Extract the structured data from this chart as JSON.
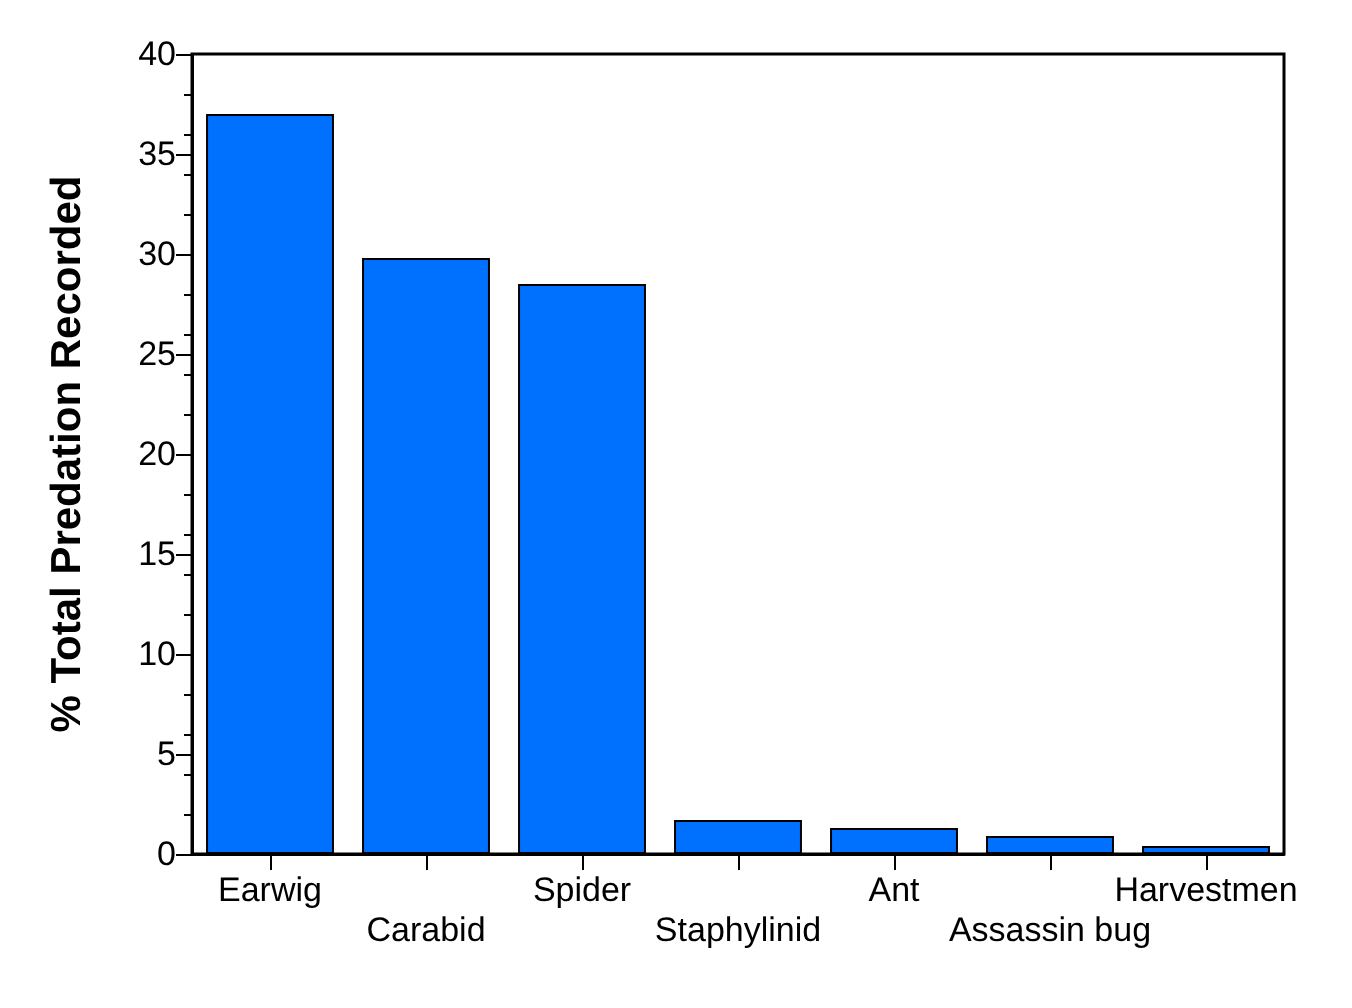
{
  "chart_data": {
    "type": "bar",
    "ylabel": "% Total Predation Recorded",
    "categories": [
      "Earwig",
      "Carabid",
      "Spider",
      "Staphylinid",
      "Ant",
      "Assassin bug",
      "Harvestmen"
    ],
    "values": [
      37,
      29.8,
      28.5,
      1.7,
      1.3,
      0.9,
      0.4
    ],
    "color": "#0070ff",
    "ylim": [
      0,
      40
    ],
    "yticks": [
      0,
      5,
      10,
      15,
      20,
      25,
      30,
      35,
      40
    ],
    "grid": false
  }
}
